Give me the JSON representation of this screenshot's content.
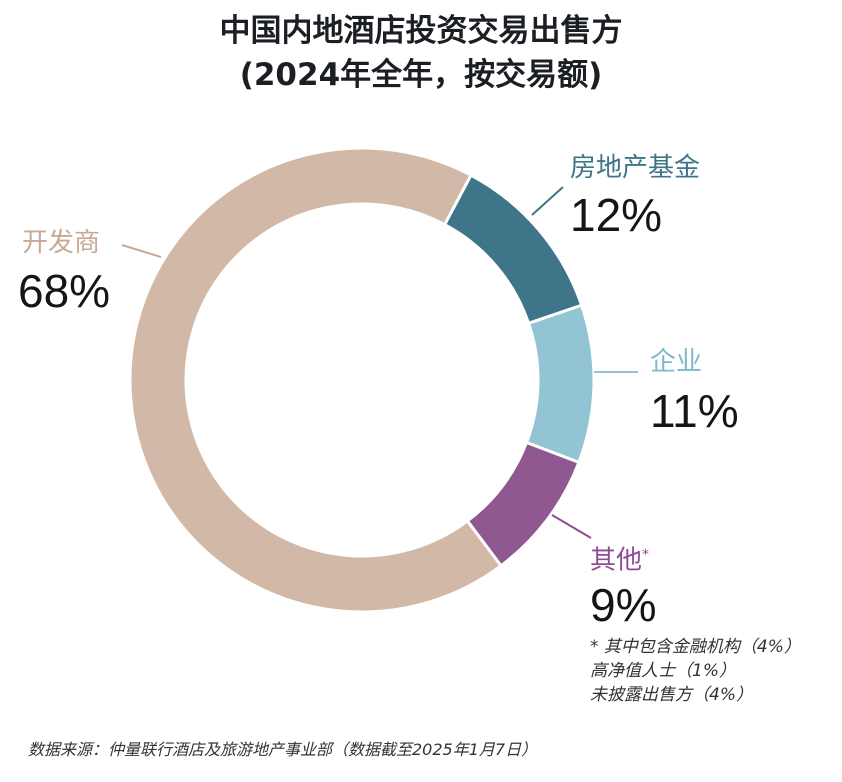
{
  "chart_data": {
    "type": "pie",
    "subtype": "donut",
    "title": "中国内地酒店投资交易出售方",
    "subtitle": "(2024年全年，按交易额)",
    "categories": [
      "房地产基金",
      "企业",
      "其他*",
      "开发商"
    ],
    "values": [
      12,
      11,
      9,
      68
    ],
    "unit": "%",
    "colors": [
      "#3e7589",
      "#93c4d4",
      "#8f5891",
      "#d2b8a6"
    ],
    "start_angle_deg": 28,
    "direction": "clockwise",
    "annotations": [
      "* 其中包含金融机构（4%）",
      "高净值人士（1%）",
      "未披露出售方（4%）"
    ],
    "footnote_breakdown": [
      {
        "label": "金融机构",
        "value": 4
      },
      {
        "label": "高净值人士",
        "value": 1
      },
      {
        "label": "未披露出售方",
        "value": 4
      }
    ],
    "source": "数据来源：仲量联行酒店及旅游地产事业部（数据截至2025年1月7日）"
  },
  "header": {
    "title_line1": "中国内地酒店投资交易出售方",
    "title_line2": "(2024年全年，按交易额)"
  },
  "labels": {
    "fund": {
      "name": "房地产基金",
      "pct": "12%",
      "color": "#3e7589"
    },
    "corporate": {
      "name": "企业",
      "pct": "11%",
      "color": "#7fb8cb"
    },
    "other": {
      "name": "其他",
      "asterisk": "*",
      "pct": "9%",
      "color": "#8f4c93"
    },
    "developer": {
      "name": "开发商",
      "pct": "68%",
      "color": "#c9a995"
    }
  },
  "footnote": {
    "line1": "* 其中包含金融机构（4%）",
    "line2": "高净值人士（1%）",
    "line3": "未披露出售方（4%）"
  },
  "source": "数据来源：仲量联行酒店及旅游地产事业部（数据截至2025年1月7日）"
}
